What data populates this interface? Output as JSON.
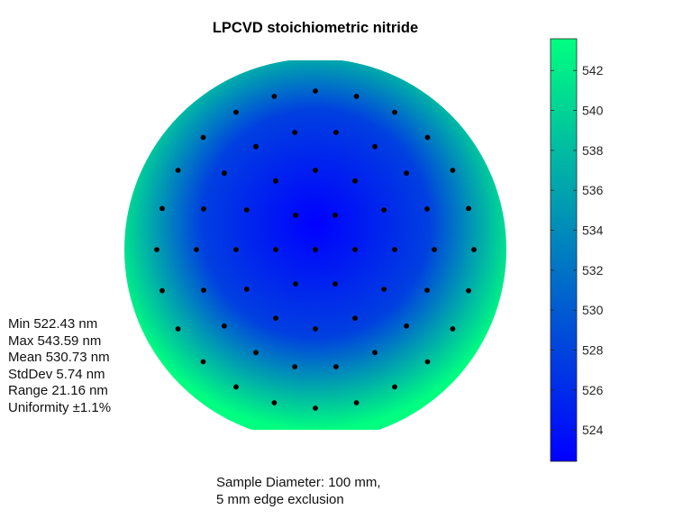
{
  "chart_data": {
    "type": "heatmap",
    "title": "LPCVD stoichiometric nitride",
    "value_range": [
      522.43,
      543.59
    ],
    "colormap": {
      "low": "#0000ff",
      "high": "#00ff80"
    },
    "colorbar": {
      "ticks": [
        "524",
        "526",
        "528",
        "530",
        "532",
        "534",
        "536",
        "538",
        "540",
        "542"
      ],
      "range": [
        522.43,
        543.59
      ]
    },
    "wafer": {
      "diameter_mm": 100,
      "flat": "top and bottom",
      "thickness_center_nm": 522.43,
      "thickness_edge_nm": 543.59
    },
    "grid": false
  },
  "stats": {
    "min": "Min 522.43 nm",
    "max": "Max 543.59 nm",
    "mean": "Mean 530.73 nm",
    "stddev": "StdDev 5.74 nm",
    "range": "Range 21.16 nm",
    "uniformity": "Uniformity ±1.1%"
  },
  "footnote": {
    "line1": "Sample Diameter: 100 mm,",
    "line2": "5 mm edge exclusion"
  },
  "colors": {
    "low": "#0000ff",
    "high": "#00ff80",
    "point": "#000000"
  }
}
